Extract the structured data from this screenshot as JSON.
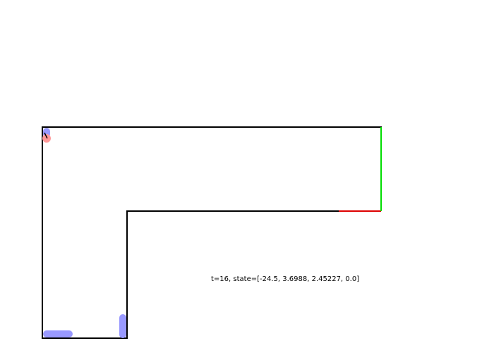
{
  "status": {
    "time_label": "t=16",
    "state_label": "state=[-24.5, 3.6988, 2.45227, 0.0]",
    "full_text": "t=16, state=[-24.5, 3.6988, 2.45227, 0.0]"
  },
  "colors": {
    "background": "#ffffff",
    "wall": "#000000",
    "goal_line": "#00dd00",
    "hazard_line": "#dd0000",
    "trail_blue": "#9999ff",
    "agent_red": "#ff9999",
    "agent_heading": "#000000"
  },
  "icons": {
    "agent": "agent-marker-icon",
    "trail": "trail-segment-icon"
  }
}
